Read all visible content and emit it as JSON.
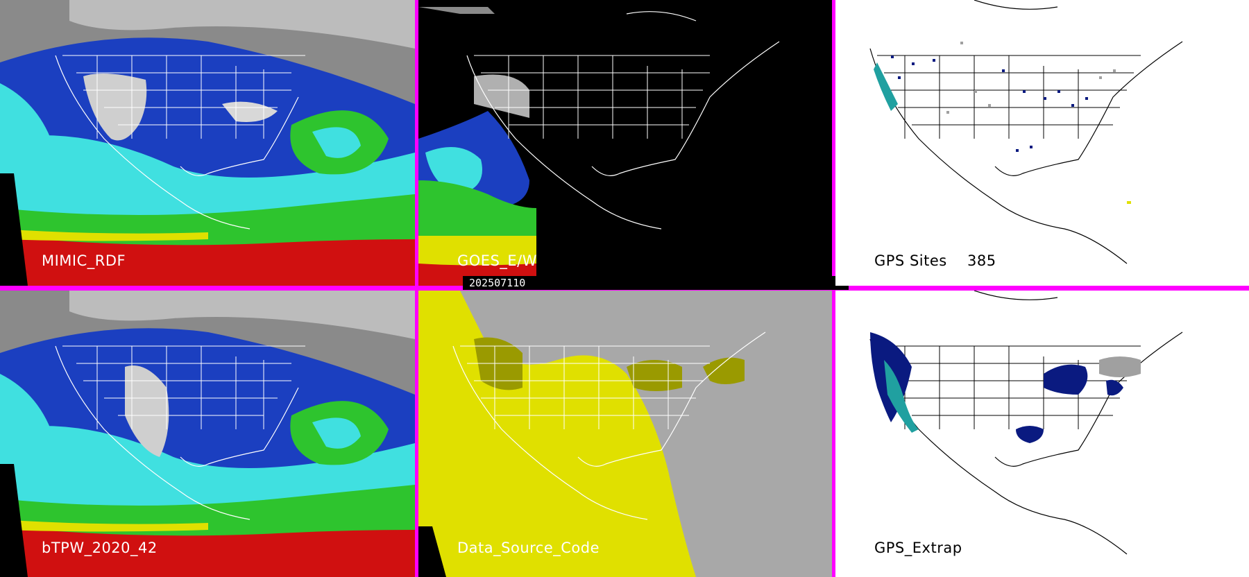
{
  "panels": [
    {
      "id": "mimic",
      "label": "MIMIC_RDF"
    },
    {
      "id": "goes",
      "label": "GOES_E/W"
    },
    {
      "id": "gps_sites",
      "label": "GPS Sites",
      "count": "385"
    },
    {
      "id": "btpw",
      "label": "bTPW_2020_42"
    },
    {
      "id": "dsc",
      "label": "Data_Source_Code"
    },
    {
      "id": "gps_extrap",
      "label": "GPS_Extrap"
    }
  ],
  "timestamp": "202507110",
  "colors": {
    "divider": "#ff00ff",
    "ocean_dry": "#c8c8c8",
    "tpw_blue_dark": "#0a1a8a",
    "tpw_blue": "#1b3fc0",
    "tpw_cyan": "#40e0e0",
    "tpw_green": "#2ec42e",
    "tpw_yellow": "#e0e000",
    "tpw_red": "#d01010",
    "dsc_yellow": "#e0e000",
    "dsc_gray": "#a8a8a8",
    "dsc_olive": "#9a9a00",
    "gps_navy": "#0a1a80",
    "gps_teal": "#20a0a0",
    "gps_gray": "#a0a0a0"
  }
}
